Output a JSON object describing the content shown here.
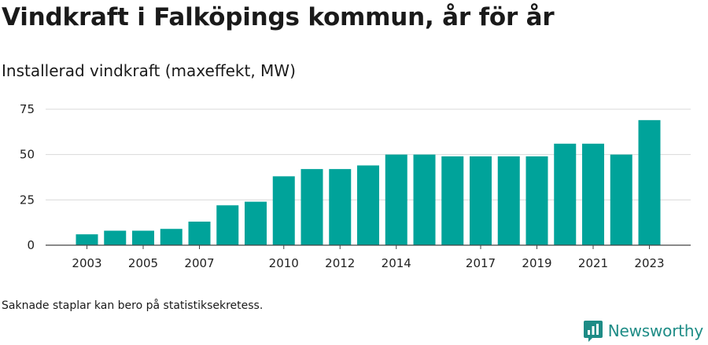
{
  "title": "Vindkraft i Falköpings kommun, år för år",
  "subtitle": "Installerad vindkraft (maxeffekt, MW)",
  "footnote": "Saknade staplar kan bero på statistiksekretess.",
  "brand": {
    "name": "Newsworthy",
    "icon": "newsworthy-logo-icon",
    "color": "#1e8c86"
  },
  "colors": {
    "bar": "#00a39a",
    "grid": "#d9d9d9",
    "axis": "#444444"
  },
  "chart_data": {
    "type": "bar",
    "categories": [
      "2003",
      "2004",
      "2005",
      "2006",
      "2007",
      "2008",
      "2009",
      "2010",
      "2011",
      "2012",
      "2013",
      "2014",
      "2015",
      "2016",
      "2017",
      "2018",
      "2019",
      "2020",
      "2021",
      "2022",
      "2023"
    ],
    "values": [
      6,
      8,
      8,
      9,
      13,
      22,
      24,
      38,
      42,
      42,
      44,
      50,
      50,
      49,
      49,
      49,
      49,
      56,
      56,
      50,
      69
    ],
    "x_tick_labels": [
      "2003",
      "2005",
      "2007",
      "2010",
      "2012",
      "2014",
      "2017",
      "2019",
      "2021",
      "2023"
    ],
    "y_ticks": [
      0,
      25,
      50,
      75
    ],
    "ylim": [
      0,
      75
    ],
    "grid": true,
    "title": "Vindkraft i Falköpings kommun, år för år",
    "ylabel": "Installerad vindkraft (maxeffekt, MW)",
    "xlabel": ""
  }
}
